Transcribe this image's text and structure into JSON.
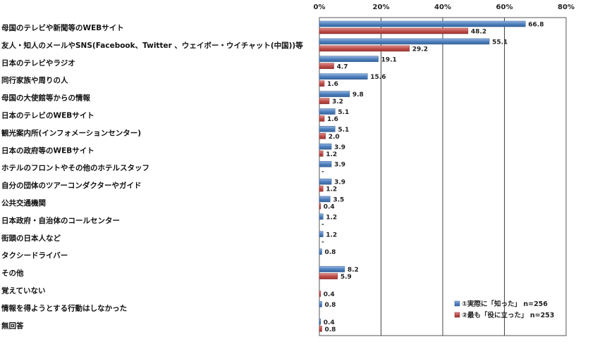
{
  "chart_data": {
    "type": "bar",
    "orientation": "horizontal",
    "categories": [
      "母国のテレビや新聞等のWEBサイト",
      "友人・知人のメールやSNS(Facebook、Twitter 、ウェイボー・ウイチャット(中国))等",
      "日本のテレビやラジオ",
      "同行家族や周りの人",
      "母国の大使館等からの情報",
      "日本のテレビのWEBサイト",
      "観光案内所(インフォメーションセンター)",
      "日本の政府等のWEBサイト",
      "ホテルのフロントやその他のホテルスタッフ",
      "自分の団体のツアーコンダクターやガイド",
      "公共交通機関",
      "日本政府・自治体のコールセンター",
      "街頭の日本人など",
      "タクシードライバー",
      "その他",
      "覚えていない",
      "情報を得ようとする行動はしなかった",
      "無回答"
    ],
    "series": [
      {
        "name": "①実際に「知った」 n=256",
        "color": "#4f81bd",
        "values": [
          66.8,
          55.1,
          19.1,
          15.6,
          9.8,
          5.1,
          5.1,
          3.9,
          3.9,
          3.9,
          3.5,
          1.2,
          1.2,
          0.8,
          8.2,
          0.0,
          0.8,
          0.4
        ],
        "labels": [
          "66.8",
          "55.1",
          "19.1",
          "15.6",
          "9.8",
          "5.1",
          "5.1",
          "3.9",
          "3.9",
          "3.9",
          "3.5",
          "1.2",
          "1.2",
          "0.8",
          "8.2",
          "",
          "0.8",
          "0.4"
        ]
      },
      {
        "name": "②最も「役に立った」 n=253",
        "color": "#c0504d",
        "values": [
          48.2,
          29.2,
          4.7,
          1.6,
          3.2,
          1.6,
          2.0,
          1.2,
          0.0,
          1.2,
          0.4,
          0.0,
          0.0,
          0.0,
          5.9,
          0.4,
          0.0,
          0.8
        ],
        "labels": [
          "48.2",
          "29.2",
          "4.7",
          "1.6",
          "3.2",
          "1.6",
          "2.0",
          "1.2",
          "-",
          "1.2",
          "0.4",
          "-",
          "-",
          "",
          "5.9",
          "0.4",
          "",
          "0.8"
        ]
      }
    ],
    "xlim": [
      0,
      80
    ],
    "xticks": [
      0,
      20,
      40,
      60,
      80
    ],
    "tick_labels": [
      "0%",
      "20%",
      "40%",
      "60%",
      "80%"
    ],
    "grid": true,
    "legend_position": "bottom-right",
    "title": "",
    "xlabel": "",
    "ylabel": ""
  }
}
